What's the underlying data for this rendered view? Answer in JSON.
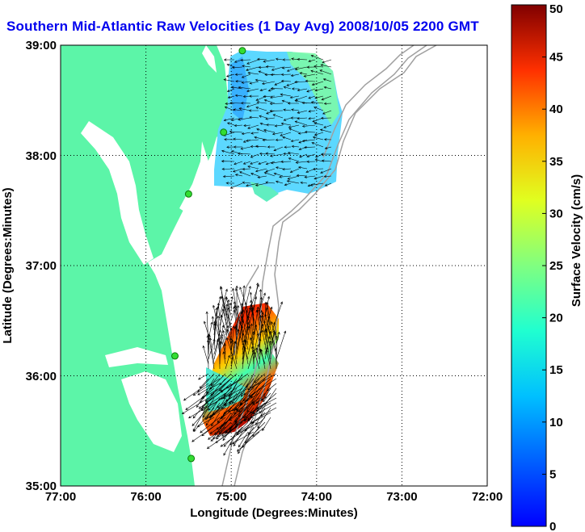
{
  "title": "Southern Mid-Atlantic Raw Velocities (1 Day Avg) 2008/10/05 2200 GMT",
  "colors": {
    "land": "#5cf5a8",
    "water": "#ffffff",
    "contour": "#a0a0a0",
    "title": "#0000ee",
    "station": "#33dd33",
    "vector": "#000000"
  },
  "map": {
    "xlabel": "Longitude (Degrees:Minutes)",
    "ylabel": "Latitude (Degrees:Minutes)",
    "x_ticks": [
      "77:00",
      "76:00",
      "75:00",
      "74:00",
      "73:00",
      "72:00"
    ],
    "y_ticks": [
      "39:00",
      "38:00",
      "37:00",
      "36:00",
      "35:00"
    ],
    "x_range_deg": [
      -77,
      -72
    ],
    "y_range_deg": [
      35,
      39
    ],
    "grid": "dotted",
    "stations": [
      {
        "lon": -74.87,
        "lat": 38.95
      },
      {
        "lon": -75.09,
        "lat": 38.21
      },
      {
        "lon": -75.5,
        "lat": 37.65
      },
      {
        "lon": -75.66,
        "lat": 36.18
      },
      {
        "lon": -75.47,
        "lat": 35.25
      }
    ]
  },
  "colorbar": {
    "label": "Surface Velocity (cm/s)",
    "min": 0,
    "max": 50,
    "ticks": [
      "0",
      "5",
      "10",
      "15",
      "20",
      "25",
      "30",
      "35",
      "40",
      "45",
      "50"
    ],
    "colormap": "jet"
  }
}
